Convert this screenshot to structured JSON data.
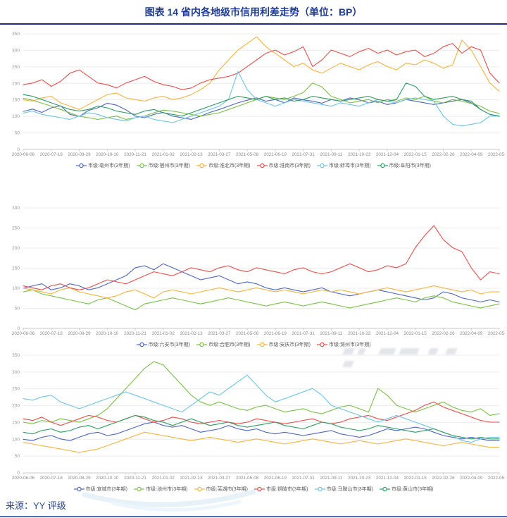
{
  "title": "图表 14 省内各地级市信用利差走势（单位：BP）",
  "source": "来源：YY 评级",
  "colors": {
    "title_blue": "#1e3c96",
    "rule_navy": "#1c2f7d",
    "bottom_rule_blue": "#4a6fb8",
    "grid": "#ececec",
    "axis_text": "#999999"
  },
  "chart_data": [
    {
      "type": "line",
      "title": "",
      "xlabel": "",
      "ylabel": "",
      "ylim": [
        0,
        350
      ],
      "ytick_step": 50,
      "grid": true,
      "legend_position": "bottom",
      "x_ticks": [
        "2020-06-06",
        "2020-07-18",
        "2020-08-29",
        "2020-10-10",
        "2020-11-21",
        "2021-01-02",
        "2021-02-13",
        "2021-03-27",
        "2021-05-08",
        "2021-06-19",
        "2021-07-31",
        "2021-09-11",
        "2021-10-23",
        "2021-12-04",
        "2022-01-15",
        "2022-02-26",
        "2022-04-09",
        "2022-05-21"
      ],
      "series": [
        {
          "name": "市级:亳州市(3年期)",
          "color": "#4e66c4",
          "values": [
            115,
            122,
            112,
            126,
            132,
            106,
            100,
            118,
            126,
            140,
            134,
            120,
            101,
            96,
            106,
            112,
            101,
            96,
            91,
            101,
            112,
            121,
            131,
            141,
            149,
            156,
            146,
            151,
            141,
            156,
            150,
            146,
            140,
            151,
            146,
            156,
            150,
            141,
            146,
            136,
            141,
            151,
            146,
            141,
            136,
            141,
            146,
            151,
            141,
            121,
            106,
            100
          ]
        },
        {
          "name": "市级:宿州市(3年期)",
          "color": "#7bc144",
          "values": [
            155,
            149,
            140,
            131,
            121,
            111,
            100,
            96,
            91,
            96,
            101,
            91,
            96,
            101,
            111,
            119,
            116,
            111,
            106,
            101,
            106,
            111,
            121,
            131,
            141,
            151,
            161,
            156,
            151,
            161,
            172,
            201,
            189,
            161,
            151,
            141,
            146,
            151,
            141,
            151,
            146,
            156,
            151,
            161,
            146,
            141,
            151,
            146,
            139,
            131,
            116,
            109
          ]
        },
        {
          "name": "市级:淮北市(3年期)",
          "color": "#f8b33e",
          "values": [
            150,
            146,
            156,
            161,
            141,
            131,
            121,
            136,
            151,
            166,
            171,
            156,
            151,
            146,
            156,
            161,
            151,
            156,
            166,
            181,
            201,
            241,
            271,
            301,
            321,
            341,
            311,
            291,
            271,
            251,
            261,
            241,
            231,
            246,
            261,
            251,
            241,
            256,
            266,
            251,
            241,
            261,
            256,
            271,
            261,
            246,
            256,
            331,
            301,
            251,
            201,
            176
          ]
        },
        {
          "name": "市级:淮南市(3年期)",
          "color": "#ec4d4d",
          "values": [
            196,
            201,
            211,
            191,
            206,
            231,
            241,
            221,
            201,
            196,
            186,
            201,
            211,
            221,
            206,
            196,
            191,
            181,
            186,
            201,
            211,
            216,
            221,
            231,
            251,
            271,
            291,
            301,
            286,
            296,
            311,
            251,
            271,
            301,
            291,
            281,
            296,
            306,
            291,
            301,
            286,
            296,
            301,
            281,
            291,
            311,
            321,
            291,
            311,
            301,
            231,
            201
          ]
        },
        {
          "name": "市级:蚌埠市(3年期)",
          "color": "#6ec4e8",
          "values": [
            110,
            116,
            106,
            101,
            96,
            91,
            101,
            111,
            106,
            96,
            91,
            86,
            96,
            101,
            91,
            86,
            81,
            91,
            101,
            111,
            121,
            131,
            151,
            236,
            181,
            151,
            141,
            131,
            141,
            151,
            146,
            141,
            136,
            131,
            141,
            136,
            131,
            141,
            151,
            146,
            141,
            151,
            156,
            151,
            146,
            101,
            76,
            71,
            76,
            81,
            101,
            101
          ]
        },
        {
          "name": "市级:阜阳市(3年期)",
          "color": "#2f9e63",
          "values": [
            166,
            161,
            151,
            141,
            131,
            121,
            116,
            121,
            131,
            126,
            116,
            111,
            106,
            116,
            121,
            111,
            106,
            101,
            111,
            121,
            131,
            141,
            151,
            161,
            156,
            151,
            161,
            151,
            156,
            146,
            151,
            161,
            156,
            151,
            146,
            151,
            156,
            161,
            151,
            146,
            151,
            201,
            191,
            161,
            151,
            156,
            161,
            151,
            146,
            121,
            106,
            101
          ]
        }
      ]
    },
    {
      "type": "line",
      "title": "",
      "xlabel": "",
      "ylabel": "",
      "ylim": [
        0,
        300
      ],
      "ytick_step": 50,
      "grid": true,
      "legend_position": "bottom",
      "x_ticks": [
        "2020-06-06",
        "2020-07-18",
        "2020-08-29",
        "2020-10-10",
        "2020-11-21",
        "2021-01-02",
        "2021-02-13",
        "2021-03-27",
        "2021-05-08",
        "2021-06-19",
        "2021-07-31",
        "2021-09-11",
        "2021-10-23",
        "2021-12-04",
        "2022-01-15",
        "2022-02-26",
        "2022-04-09",
        "2022-05-21"
      ],
      "series": [
        {
          "name": "市级:六安市(3年期)",
          "color": "#4e66c4",
          "values": [
            100,
            106,
            111,
            96,
            101,
            111,
            106,
            96,
            101,
            111,
            121,
            131,
            151,
            156,
            146,
            161,
            151,
            141,
            131,
            121,
            126,
            131,
            121,
            111,
            116,
            111,
            101,
            96,
            101,
            96,
            91,
            96,
            101,
            91,
            86,
            81,
            86,
            91,
            96,
            91,
            86,
            81,
            76,
            71,
            76,
            91,
            86,
            76,
            71,
            66,
            71,
            66
          ]
        },
        {
          "name": "市级:合肥市(3年期)",
          "color": "#7bc144",
          "values": [
            91,
            96,
            86,
            81,
            76,
            71,
            66,
            61,
            71,
            76,
            66,
            56,
            46,
            61,
            66,
            71,
            76,
            71,
            66,
            61,
            66,
            71,
            76,
            71,
            66,
            61,
            56,
            61,
            66,
            61,
            56,
            61,
            66,
            61,
            56,
            51,
            56,
            61,
            66,
            71,
            76,
            71,
            66,
            76,
            81,
            76,
            66,
            61,
            56,
            51,
            56,
            61
          ]
        },
        {
          "name": "市级:安庆市(3年期)",
          "color": "#f8b33e",
          "values": [
            100,
            96,
            91,
            86,
            96,
            101,
            91,
            86,
            81,
            76,
            81,
            91,
            96,
            86,
            76,
            91,
            96,
            91,
            86,
            91,
            96,
            101,
            96,
            91,
            96,
            101,
            96,
            91,
            96,
            91,
            86,
            91,
            96,
            91,
            96,
            91,
            86,
            91,
            96,
            101,
            96,
            91,
            96,
            101,
            106,
            101,
            96,
            91,
            96,
            86,
            91,
            91
          ]
        },
        {
          "name": "市级:滁州市(3年期)",
          "color": "#ec4d4d",
          "values": [
            106,
            101,
            96,
            106,
            111,
            101,
            96,
            101,
            111,
            121,
            116,
            111,
            121,
            131,
            141,
            136,
            131,
            141,
            151,
            146,
            141,
            151,
            156,
            146,
            141,
            151,
            146,
            141,
            136,
            146,
            151,
            141,
            136,
            141,
            151,
            161,
            151,
            141,
            146,
            156,
            151,
            161,
            201,
            231,
            256,
            221,
            201,
            191,
            151,
            121,
            141,
            136
          ]
        }
      ]
    },
    {
      "type": "line",
      "title": "",
      "xlabel": "",
      "ylabel": "",
      "ylim": [
        0,
        350
      ],
      "ytick_step": 50,
      "grid": true,
      "legend_position": "bottom",
      "x_ticks": [
        "2020-06-06",
        "2020-07-18",
        "2020-08-29",
        "2020-10-10",
        "2020-11-21",
        "2021-01-02",
        "2021-02-13",
        "2021-03-27",
        "2021-05-08",
        "2021-06-19",
        "2021-07-31",
        "2021-09-11",
        "2021-10-23",
        "2021-12-04",
        "2022-01-15",
        "2022-02-26",
        "2022-04-09",
        "2022-05-21"
      ],
      "series": [
        {
          "name": "市级:宣城市(3年期)",
          "color": "#4e66c4",
          "values": [
            100,
            96,
            106,
            111,
            101,
            96,
            106,
            116,
            121,
            111,
            116,
            126,
            136,
            146,
            151,
            141,
            136,
            141,
            131,
            121,
            126,
            131,
            141,
            131,
            126,
            131,
            121,
            116,
            121,
            116,
            111,
            116,
            121,
            126,
            116,
            111,
            106,
            111,
            121,
            131,
            126,
            131,
            136,
            131,
            121,
            111,
            106,
            101,
            106,
            101,
            96,
            96
          ]
        },
        {
          "name": "市级:池州市(3年期)",
          "color": "#7bc144",
          "values": [
            151,
            146,
            156,
            151,
            161,
            156,
            151,
            161,
            171,
            191,
            221,
            251,
            281,
            311,
            331,
            321,
            291,
            261,
            231,
            211,
            201,
            211,
            201,
            191,
            186,
            196,
            201,
            191,
            181,
            186,
            191,
            181,
            176,
            186,
            196,
            201,
            191,
            181,
            251,
            231,
            201,
            191,
            181,
            191,
            201,
            211,
            196,
            186,
            181,
            191,
            171,
            176
          ]
        },
        {
          "name": "市级:芜湖市(3年期)",
          "color": "#f8b33e",
          "values": [
            91,
            86,
            81,
            76,
            71,
            66,
            61,
            66,
            71,
            81,
            91,
            101,
            111,
            121,
            116,
            111,
            106,
            101,
            96,
            101,
            106,
            101,
            96,
            91,
            96,
            101,
            96,
            91,
            86,
            91,
            96,
            101,
            96,
            91,
            86,
            91,
            96,
            91,
            86,
            91,
            96,
            101,
            96,
            91,
            86,
            81,
            86,
            91,
            86,
            81,
            76,
            76
          ]
        },
        {
          "name": "市级:铜陵市(3年期)",
          "color": "#ec4d4d",
          "values": [
            161,
            156,
            166,
            151,
            141,
            151,
            161,
            171,
            166,
            156,
            151,
            161,
            171,
            161,
            151,
            156,
            166,
            161,
            151,
            146,
            151,
            156,
            151,
            146,
            151,
            161,
            156,
            151,
            146,
            151,
            156,
            161,
            151,
            146,
            151,
            161,
            166,
            171,
            161,
            156,
            166,
            176,
            186,
            201,
            211,
            196,
            186,
            176,
            166,
            156,
            151,
            151
          ]
        },
        {
          "name": "市级:马鞍山市(3年期)",
          "color": "#6ec4e8",
          "values": [
            221,
            216,
            226,
            231,
            211,
            201,
            191,
            201,
            211,
            221,
            231,
            241,
            231,
            221,
            211,
            201,
            191,
            181,
            201,
            221,
            241,
            231,
            251,
            271,
            291,
            261,
            231,
            211,
            221,
            231,
            241,
            251,
            231,
            201,
            191,
            181,
            171,
            161,
            151,
            161,
            171,
            161,
            151,
            141,
            131,
            121,
            111,
            96,
            91,
            101,
            106,
            106
          ]
        },
        {
          "name": "市级:黄山市(3年期)",
          "color": "#2f9e63",
          "values": [
            121,
            116,
            126,
            131,
            121,
            126,
            136,
            141,
            131,
            141,
            151,
            161,
            171,
            166,
            156,
            151,
            141,
            151,
            161,
            151,
            141,
            146,
            151,
            141,
            136,
            141,
            146,
            151,
            141,
            136,
            131,
            141,
            151,
            146,
            136,
            131,
            126,
            131,
            141,
            136,
            131,
            126,
            121,
            126,
            131,
            121,
            111,
            106,
            101,
            106,
            101,
            101
          ]
        }
      ]
    }
  ]
}
